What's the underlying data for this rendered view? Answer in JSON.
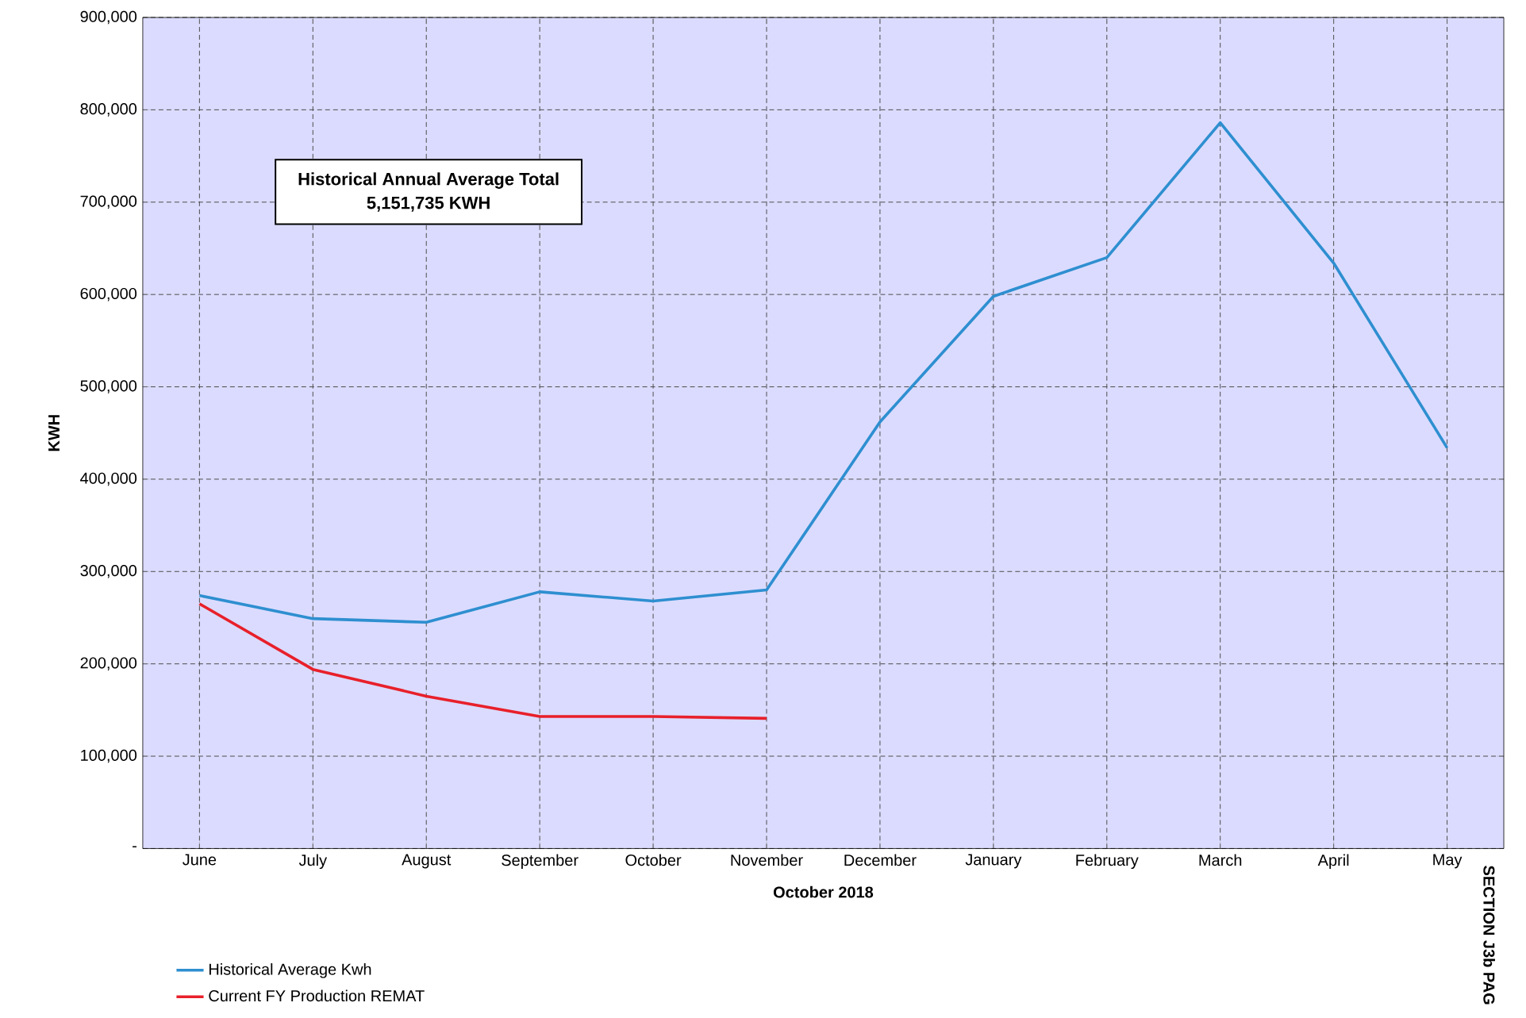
{
  "chart_data": {
    "type": "line",
    "categories": [
      "June",
      "July",
      "August",
      "September",
      "October",
      "November",
      "December",
      "January",
      "February",
      "March",
      "April",
      "May"
    ],
    "series": [
      {
        "name": "Historical Average Kwh",
        "color": "#2e8fd0",
        "values": [
          274000,
          249000,
          245000,
          278000,
          268000,
          280000,
          462000,
          598000,
          640000,
          786000,
          634000,
          434000
        ]
      },
      {
        "name": "Current FY Production REMAT",
        "color": "#e8202a",
        "values": [
          265000,
          194000,
          165000,
          143000,
          143000,
          141000,
          null,
          null,
          null,
          null,
          null,
          null
        ]
      }
    ],
    "xlabel": "October 2018",
    "ylabel": "KWH",
    "ylim": [
      0,
      900000
    ],
    "yticks": [
      {
        "value": 0,
        "label": "-"
      },
      {
        "value": 100000,
        "label": "100,000"
      },
      {
        "value": 200000,
        "label": "200,000"
      },
      {
        "value": 300000,
        "label": "300,000"
      },
      {
        "value": 400000,
        "label": "400,000"
      },
      {
        "value": 500000,
        "label": "500,000"
      },
      {
        "value": 600000,
        "label": "600,000"
      },
      {
        "value": 700000,
        "label": "700,000"
      },
      {
        "value": 800000,
        "label": "800,000"
      },
      {
        "value": 900000,
        "label": "900,000"
      }
    ],
    "annotations": [
      "Historical Annual Average Total",
      "5,151,735 KWH",
      "SECTION J3b PAG"
    ],
    "grid": true,
    "legend": "bottom left",
    "marker": "none",
    "line_style": "solid"
  }
}
